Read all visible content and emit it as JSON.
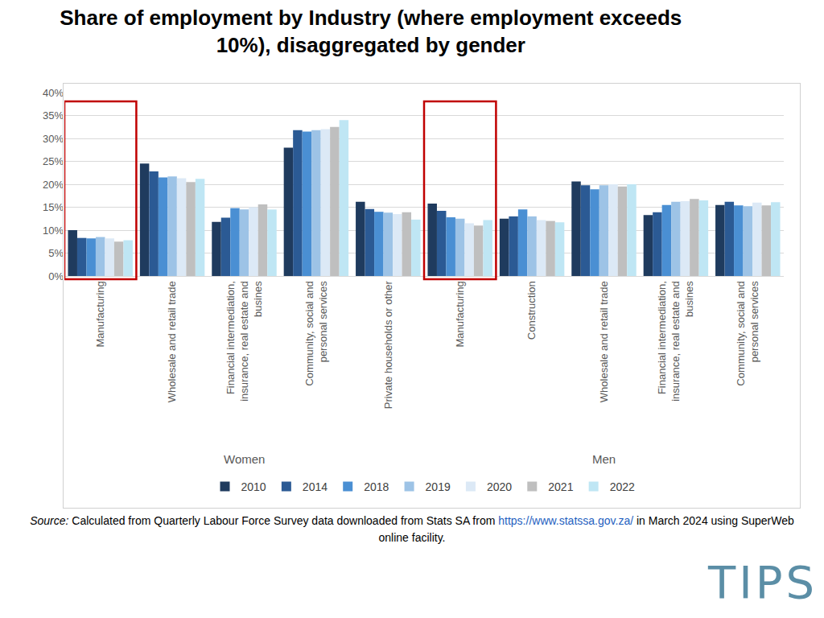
{
  "chart_data": {
    "type": "bar",
    "title": "Share of employment by Industry (where employment exceeds 10%), disaggregated by gender",
    "groups": [
      {
        "label": "Women",
        "categories": [
          "Manufacturing",
          "Wholesale and retail trade",
          "Financial intermediation, insurance, real estate and busines",
          "Community, social and personal services",
          "Private households or other"
        ]
      },
      {
        "label": "Men",
        "categories": [
          "Manufacturing",
          "Construction",
          "Wholesale and retail trade",
          "Financial intermediation, insurance, real estate and busines",
          "Community, social and personal services"
        ]
      }
    ],
    "series": [
      {
        "name": "2010",
        "color": "#1f3b5e",
        "values": [
          10.0,
          24.5,
          11.8,
          28.0,
          16.2,
          15.8,
          12.5,
          20.6,
          13.3,
          15.5
        ]
      },
      {
        "name": "2014",
        "color": "#2b5a94",
        "values": [
          8.3,
          22.8,
          12.7,
          31.8,
          14.6,
          14.2,
          13.0,
          19.8,
          13.9,
          16.2
        ]
      },
      {
        "name": "2018",
        "color": "#4a8fd3",
        "values": [
          8.2,
          21.5,
          14.8,
          31.5,
          14.0,
          12.8,
          14.5,
          18.9,
          15.5,
          15.4
        ]
      },
      {
        "name": "2019",
        "color": "#9dc3e6",
        "values": [
          8.5,
          21.7,
          14.5,
          31.8,
          13.8,
          12.5,
          13.0,
          19.8,
          16.2,
          15.2
        ]
      },
      {
        "name": "2020",
        "color": "#dce9f6",
        "values": [
          8.2,
          21.3,
          15.0,
          32.0,
          13.5,
          11.5,
          12.2,
          20.0,
          16.3,
          16.0
        ]
      },
      {
        "name": "2021",
        "color": "#bfbfbf",
        "values": [
          7.5,
          20.5,
          15.6,
          32.5,
          13.9,
          11.0,
          12.0,
          19.5,
          16.8,
          15.4
        ]
      },
      {
        "name": "2022",
        "color": "#bfe6f4",
        "values": [
          7.8,
          21.2,
          14.5,
          34.0,
          12.3,
          12.2,
          11.7,
          20.0,
          16.5,
          16.1
        ]
      }
    ],
    "ylim": [
      0,
      40
    ],
    "yticks": [
      {
        "value": 0,
        "label": "0%"
      },
      {
        "value": 5,
        "label": "5%"
      },
      {
        "value": 10,
        "label": "10%"
      },
      {
        "value": 15,
        "label": "15%"
      },
      {
        "value": 20,
        "label": "20%"
      },
      {
        "value": 25,
        "label": "25%"
      },
      {
        "value": 30,
        "label": "30%"
      },
      {
        "value": 35,
        "label": "35%"
      },
      {
        "value": 40,
        "label": "40%"
      }
    ],
    "grid": true,
    "legend": "bottom",
    "highlight": [
      {
        "group": "Women",
        "category": "Manufacturing"
      },
      {
        "group": "Men",
        "category": "Manufacturing"
      }
    ]
  },
  "source": {
    "label": "Source:",
    "text_before": "Calculated from Quarterly Labour Force Survey data downloaded from Stats SA from",
    "url": "https://www.statssa.gov.za/",
    "text_after": "in March 2024 using SuperWeb online facility."
  },
  "logo": "TIPS"
}
